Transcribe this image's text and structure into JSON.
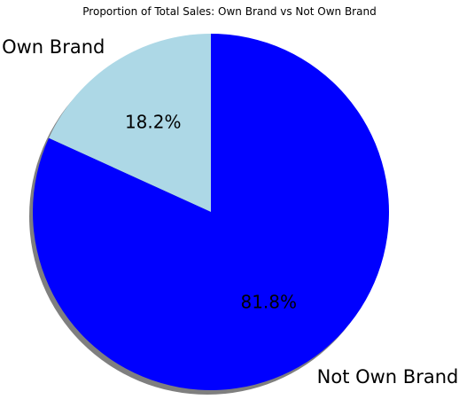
{
  "chart_data": {
    "type": "pie",
    "title": "Proportion of Total Sales: Own Brand vs Not Own Brand",
    "start_angle_deg": 90,
    "direction": "counterclockwise",
    "shadow": true,
    "slices": [
      {
        "label": "Own Brand",
        "value": 18.2,
        "pct_label": "18.2%",
        "color": "#add8e6"
      },
      {
        "label": "Not Own Brand",
        "value": 81.8,
        "pct_label": "81.8%",
        "color": "#0000ff"
      }
    ]
  }
}
